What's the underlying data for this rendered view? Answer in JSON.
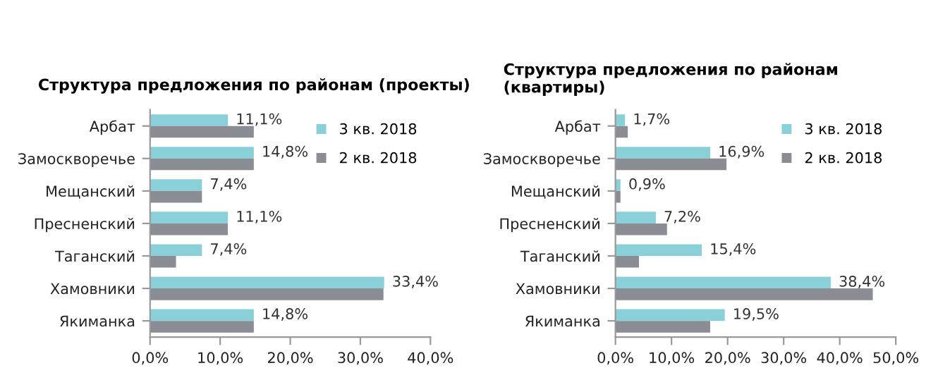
{
  "chart_data": [
    {
      "type": "bar",
      "orientation": "horizontal",
      "title": "Структура предложения по районам (проекты)",
      "categories": [
        "Арбат",
        "Замоскворечье",
        "Мещанский",
        "Пресненский",
        "Таганский",
        "Хамовники",
        "Якиманка"
      ],
      "series": [
        {
          "name": "3 кв. 2018",
          "color": "#8ad0d9",
          "values": [
            11.1,
            14.8,
            7.4,
            11.1,
            7.4,
            33.4,
            14.8
          ],
          "value_labels": [
            "11,1%",
            "14,8%",
            "7,4%",
            "11,1%",
            "7,4%",
            "33,4%",
            "14,8%"
          ]
        },
        {
          "name": "2 кв. 2018",
          "color": "#8b8d95",
          "values": [
            14.8,
            14.8,
            7.4,
            11.1,
            3.7,
            33.3,
            14.8
          ]
        }
      ],
      "xlim": [
        0,
        40
      ],
      "xticks": [
        {
          "value": 0,
          "label": "0,0%"
        },
        {
          "value": 10,
          "label": "10,0%"
        },
        {
          "value": 20,
          "label": "20,0%"
        },
        {
          "value": 30,
          "label": "30,0%"
        },
        {
          "value": 40,
          "label": "40,0%"
        }
      ],
      "legend": "top right",
      "grid": false
    },
    {
      "type": "bar",
      "orientation": "horizontal",
      "title": "Структура предложения по районам (квартиры)",
      "categories": [
        "Арбат",
        "Замоскворечье",
        "Мещанский",
        "Пресненский",
        "Таганский",
        "Хамовники",
        "Якиманка"
      ],
      "series": [
        {
          "name": "3 кв. 2018",
          "color": "#8ad0d9",
          "values": [
            1.7,
            16.9,
            0.9,
            7.2,
            15.4,
            38.4,
            19.5
          ],
          "value_labels": [
            "1,7%",
            "16,9%",
            "0,9%",
            "7,2%",
            "15,4%",
            "38,4%",
            "19,5%"
          ]
        },
        {
          "name": "2 кв. 2018",
          "color": "#8b8d95",
          "values": [
            2.2,
            19.8,
            0.9,
            9.2,
            4.2,
            45.9,
            16.9
          ]
        }
      ],
      "xlim": [
        0,
        50
      ],
      "xticks": [
        {
          "value": 0,
          "label": "0,0%"
        },
        {
          "value": 10,
          "label": "10,0%"
        },
        {
          "value": 20,
          "label": "20,0%"
        },
        {
          "value": 30,
          "label": "30,0%"
        },
        {
          "value": 40,
          "label": "40,0%"
        },
        {
          "value": 50,
          "label": "50,0%"
        }
      ],
      "legend": "top right",
      "grid": false
    }
  ]
}
